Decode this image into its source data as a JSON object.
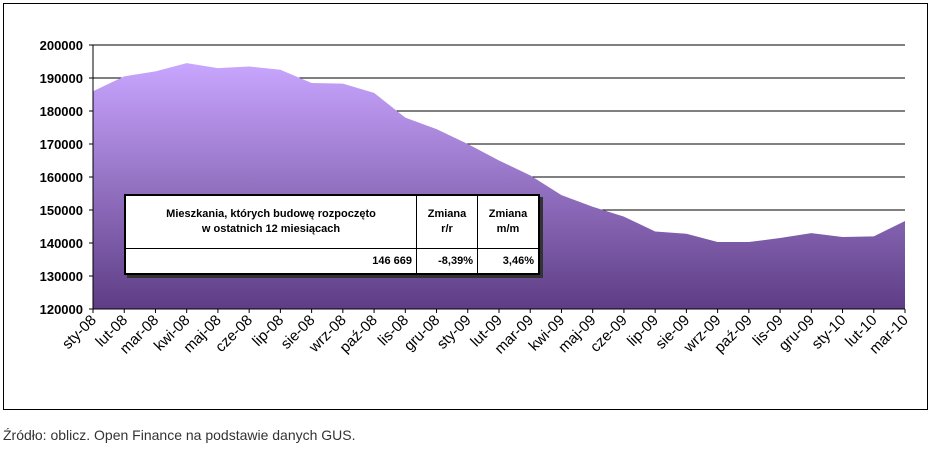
{
  "chart_data": {
    "type": "area",
    "categories": [
      "sty-08",
      "lut-08",
      "mar-08",
      "kwi-08",
      "maj-08",
      "cze-08",
      "lip-08",
      "sie-08",
      "wrz-08",
      "paź-08",
      "lis-08",
      "gru-08",
      "sty-09",
      "lut-09",
      "mar-09",
      "kwi-09",
      "maj-09",
      "cze-09",
      "lip-09",
      "sie-09",
      "wrz-09",
      "paź-09",
      "lis-09",
      "gru-09",
      "sty-10",
      "lut-10",
      "mar-10"
    ],
    "values": [
      186000,
      190500,
      192000,
      194500,
      193000,
      193500,
      192500,
      188500,
      188300,
      185500,
      178000,
      174500,
      170000,
      165000,
      160500,
      154500,
      151000,
      148000,
      143500,
      142800,
      140300,
      140300,
      141500,
      143000,
      141800,
      142000,
      146669
    ],
    "ylim": [
      120000,
      200000
    ],
    "yticks": [
      "120000",
      "130000",
      "140000",
      "150000",
      "160000",
      "170000",
      "180000",
      "190000",
      "200000"
    ],
    "title": "",
    "xlabel": "",
    "ylabel": "",
    "grid": true,
    "colors": {
      "area_top": "#c9a6ff",
      "area_bottom": "#5e3d85",
      "grid": "#000000",
      "plot_bg": "#ffffff"
    }
  },
  "summary_table": {
    "headers": [
      "Mieszkania, których budowę rozpoczęto\nw ostatnich 12 miesiącach",
      "Zmiana\nr/r",
      "Zmiana\nm/m"
    ],
    "values": [
      "146 669",
      "-8,39%",
      "3,46%"
    ]
  },
  "source_text": "Źródło: oblicz. Open Finance na podstawie danych GUS."
}
